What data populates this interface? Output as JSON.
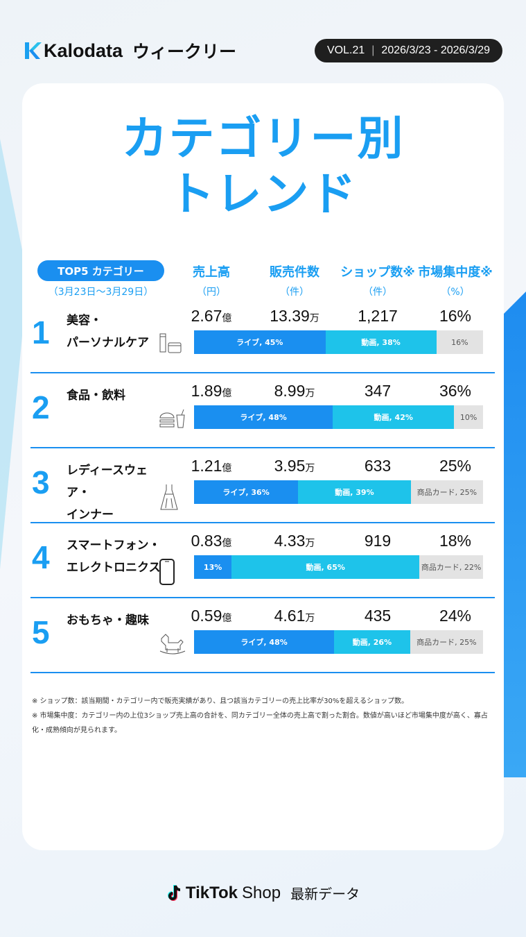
{
  "header": {
    "brand": "Kalodata",
    "weekly": "ウィークリー",
    "vol": "VOL.21",
    "date_range": "2026/3/23 - 2026/3/29"
  },
  "title": {
    "line1": "カテゴリー別",
    "line2": "トレンド"
  },
  "table": {
    "pill": "TOP5 カテゴリー",
    "period": "（3月23日～3月29日）",
    "columns": [
      {
        "label": "売上高",
        "unit": "（円）"
      },
      {
        "label": "販売件数",
        "unit": "（件）"
      },
      {
        "label": "ショップ数※",
        "unit": "（件）"
      },
      {
        "label": "市場集中度※",
        "unit": "（%）"
      }
    ],
    "rows": [
      {
        "rank": "1",
        "name": "美容・\nパーソナルケア",
        "icon": "cosmetics-icon",
        "sales": "2.67",
        "sales_unit": "億",
        "units": "13.39",
        "units_unit": "万",
        "shops": "1,217",
        "concentration": "16%",
        "segments": [
          {
            "type": "live",
            "label": "ライブ, 45%",
            "pct": 45
          },
          {
            "type": "video",
            "label": "動画, 38%",
            "pct": 38
          },
          {
            "type": "other",
            "label": "16%",
            "pct": 16
          }
        ]
      },
      {
        "rank": "2",
        "name": "食品・飲料",
        "icon": "burger-drink-icon",
        "sales": "1.89",
        "sales_unit": "億",
        "units": "8.99",
        "units_unit": "万",
        "shops": "347",
        "concentration": "36%",
        "segments": [
          {
            "type": "live",
            "label": "ライブ, 48%",
            "pct": 48
          },
          {
            "type": "video",
            "label": "動画, 42%",
            "pct": 42
          },
          {
            "type": "other",
            "label": "10%",
            "pct": 10
          }
        ]
      },
      {
        "rank": "3",
        "name": "レディースウェア・\nインナー",
        "icon": "dress-icon",
        "sales": "1.21",
        "sales_unit": "億",
        "units": "3.95",
        "units_unit": "万",
        "shops": "633",
        "concentration": "25%",
        "segments": [
          {
            "type": "live",
            "label": "ライブ, 36%",
            "pct": 36
          },
          {
            "type": "video",
            "label": "動画, 39%",
            "pct": 39
          },
          {
            "type": "other",
            "label": "商品カード, 25%",
            "pct": 25
          }
        ]
      },
      {
        "rank": "4",
        "name": "スマートフォン・\nエレクトロニクス",
        "icon": "smartphone-icon",
        "sales": "0.83",
        "sales_unit": "億",
        "units": "4.33",
        "units_unit": "万",
        "shops": "919",
        "concentration": "18%",
        "segments": [
          {
            "type": "live",
            "label": "13%",
            "pct": 13
          },
          {
            "type": "video",
            "label": "動画, 65%",
            "pct": 65
          },
          {
            "type": "other",
            "label": "商品カード, 22%",
            "pct": 22
          }
        ]
      },
      {
        "rank": "5",
        "name": "おもちゃ・趣味",
        "icon": "rocking-horse-icon",
        "sales": "0.59",
        "sales_unit": "億",
        "units": "4.61",
        "units_unit": "万",
        "shops": "435",
        "concentration": "24%",
        "segments": [
          {
            "type": "live",
            "label": "ライブ, 48%",
            "pct": 48
          },
          {
            "type": "video",
            "label": "動画, 26%",
            "pct": 26
          },
          {
            "type": "other",
            "label": "商品カード, 25%",
            "pct": 25
          }
        ]
      }
    ]
  },
  "notes": [
    "※ ショップ数：該当期間・カテゴリー内で販売実績があり、且つ該当カテゴリーの売上比率が30%を超えるショップ数。",
    "※ 市場集中度：カテゴリー内の上位3ショップ売上高の合計を、同カテゴリー全体の売上高で割った割合。数値が高いほど市場集中度が高く、寡占化・成熟傾向が見られます。"
  ],
  "footer": {
    "tiktok": "TikTok",
    "shop": "Shop",
    "latest": "最新データ"
  },
  "colors": {
    "accent": "#1a9ef2",
    "live": "#1a8ff0",
    "video": "#1ec3ea",
    "other": "#e3e3e3"
  }
}
